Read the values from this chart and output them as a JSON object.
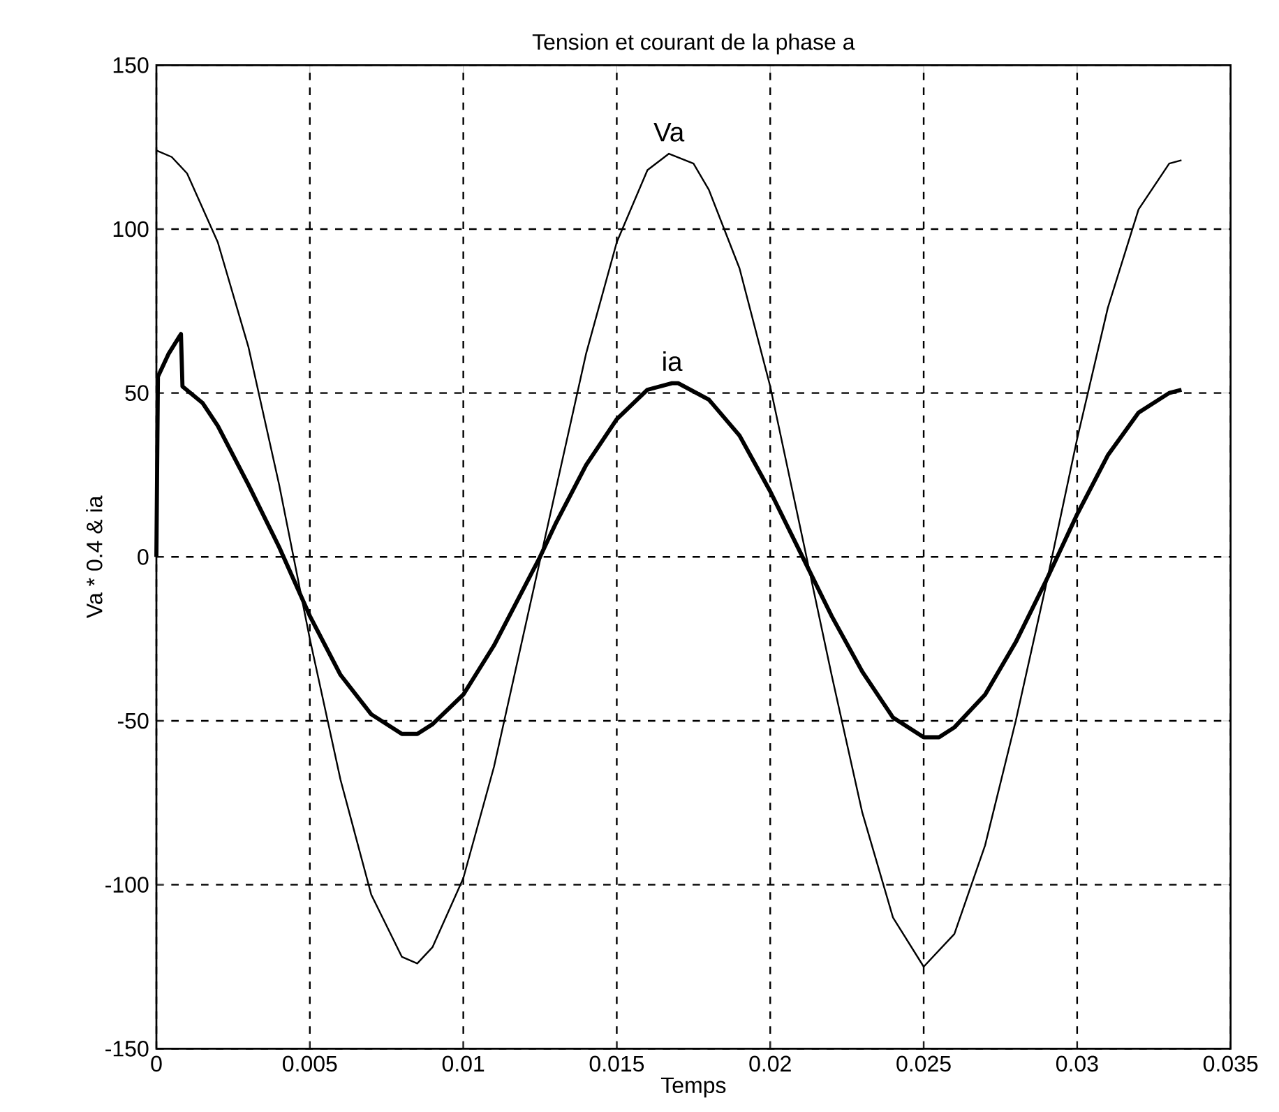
{
  "chart_data": {
    "type": "line",
    "title": "Tension et courant de la phase a",
    "xlabel": "Temps",
    "ylabel": "Va * 0.4  & ia",
    "xlim": [
      0,
      0.035
    ],
    "ylim": [
      -150,
      150
    ],
    "xticks": [
      0,
      0.005,
      0.01,
      0.015,
      0.02,
      0.025,
      0.03,
      0.035
    ],
    "yticks": [
      -150,
      -100,
      -50,
      0,
      50,
      100,
      150
    ],
    "grid": true,
    "line_style": "solid",
    "marker": "none",
    "series": [
      {
        "name": "Va",
        "color": "#000000",
        "x": [
          0,
          0.0005,
          0.001,
          0.002,
          0.003,
          0.004,
          0.005,
          0.006,
          0.007,
          0.008,
          0.0085,
          0.009,
          0.01,
          0.011,
          0.012,
          0.013,
          0.014,
          0.015,
          0.016,
          0.0167,
          0.0175,
          0.018,
          0.019,
          0.02,
          0.021,
          0.022,
          0.023,
          0.024,
          0.025,
          0.026,
          0.027,
          0.028,
          0.029,
          0.03,
          0.031,
          0.032,
          0.033,
          0.0334
        ],
        "values": [
          124,
          122,
          117,
          96,
          64,
          22,
          -25,
          -68,
          -103,
          -122,
          -124,
          -119,
          -98,
          -64,
          -22,
          20,
          62,
          96,
          118,
          123,
          120,
          112,
          88,
          52,
          8,
          -36,
          -78,
          -110,
          -125,
          -115,
          -88,
          -50,
          -8,
          36,
          76,
          106,
          120,
          121
        ]
      },
      {
        "name": "ia",
        "color": "#000000",
        "x": [
          0,
          5e-05,
          0.0004,
          0.0008,
          0.00085,
          0.0015,
          0.002,
          0.003,
          0.004,
          0.005,
          0.006,
          0.007,
          0.008,
          0.0085,
          0.009,
          0.01,
          0.011,
          0.012,
          0.0125,
          0.013,
          0.014,
          0.015,
          0.016,
          0.0168,
          0.017,
          0.018,
          0.019,
          0.02,
          0.021,
          0.022,
          0.023,
          0.024,
          0.025,
          0.0255,
          0.026,
          0.027,
          0.028,
          0.029,
          0.03,
          0.031,
          0.032,
          0.033,
          0.0334
        ],
        "values": [
          0,
          55,
          62,
          68,
          52,
          47,
          40,
          22,
          3,
          -18,
          -36,
          -48,
          -54,
          -54,
          -51,
          -42,
          -27,
          -9,
          0,
          10,
          28,
          42,
          51,
          53,
          53,
          48,
          37,
          20,
          1,
          -18,
          -35,
          -49,
          -55,
          -55,
          -52,
          -42,
          -26,
          -7,
          13,
          31,
          44,
          50,
          51
        ]
      }
    ]
  }
}
